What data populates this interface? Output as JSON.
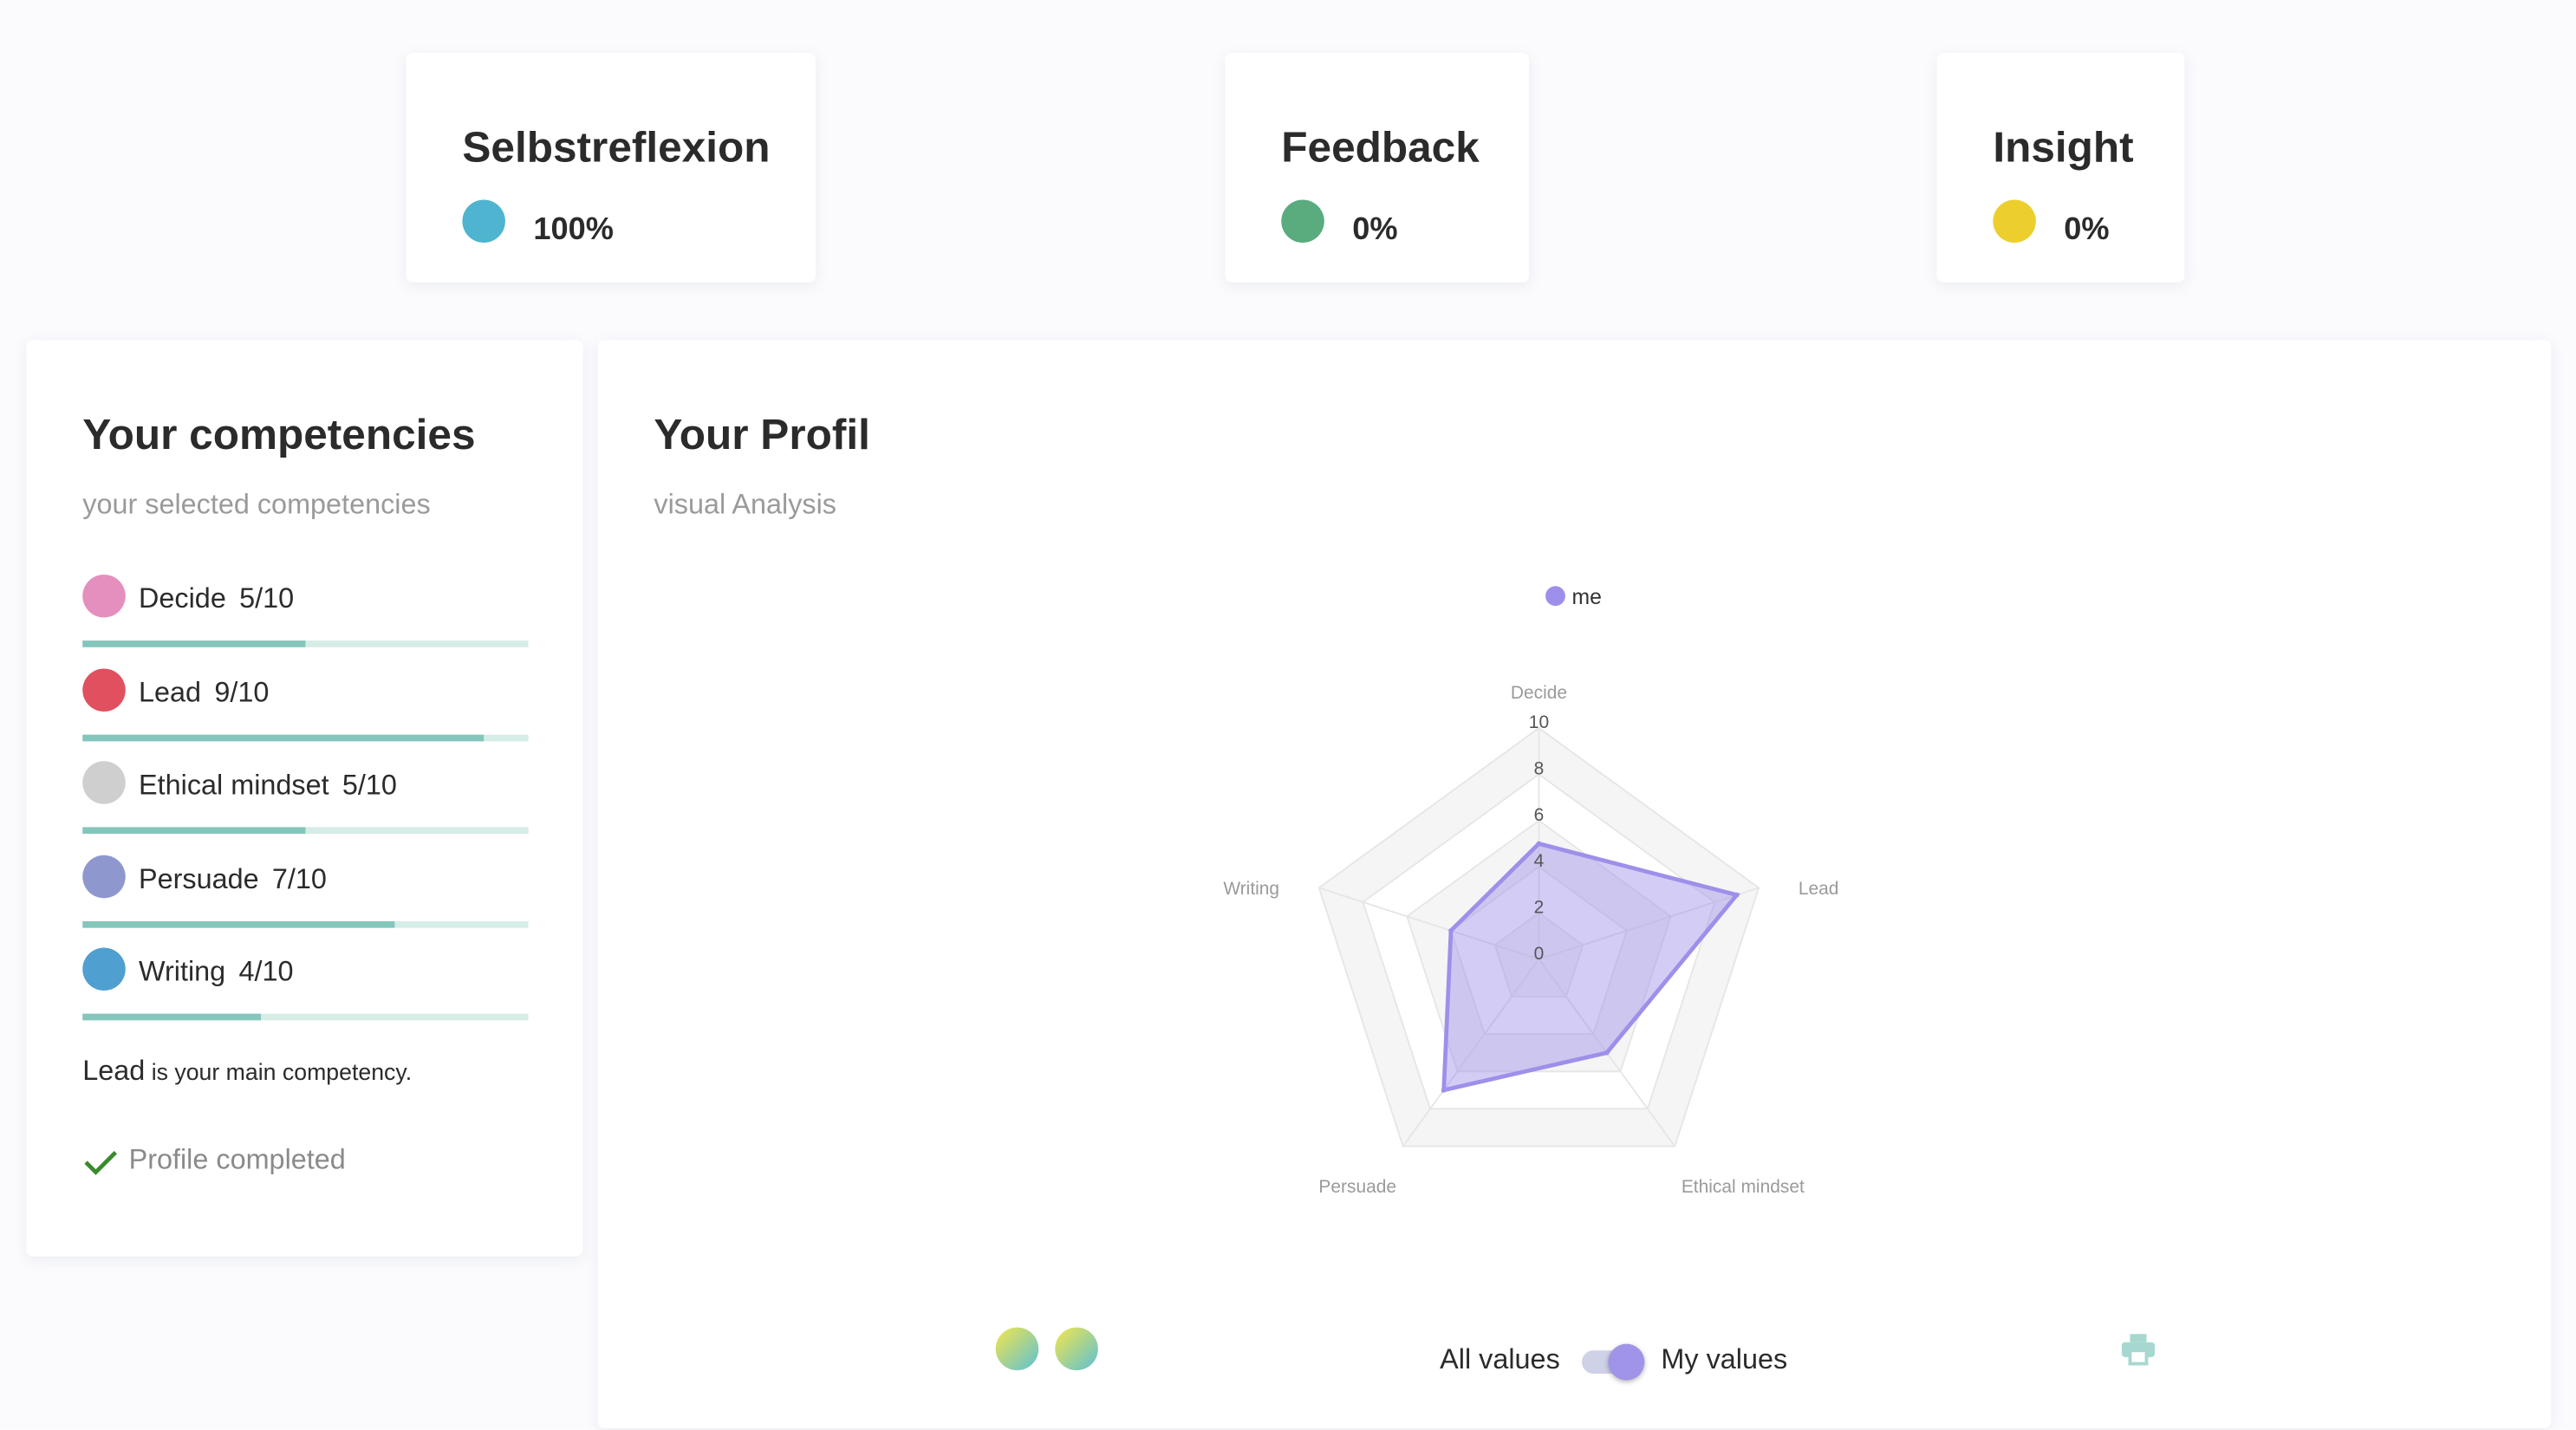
{
  "stats": [
    {
      "title": "Selbstreflexion",
      "value": "100%",
      "icon": "head-icon",
      "color": "#4fb4cf"
    },
    {
      "title": "Feedback",
      "value": "0%",
      "icon": "stars-person-icon",
      "color": "#5aab7e"
    },
    {
      "title": "Insight",
      "value": "0%",
      "icon": "eye-icon",
      "color": "#eccf2c"
    }
  ],
  "competencies": {
    "title": "Your competencies",
    "subtitle": "your selected competencies",
    "items": [
      {
        "name": "Decide",
        "score": "5/10",
        "value": 5,
        "color": "#e58fbf"
      },
      {
        "name": "Lead",
        "score": "9/10",
        "value": 9,
        "color": "#e0505e"
      },
      {
        "name": "Ethical mindset",
        "score": "5/10",
        "value": 5,
        "color": "#cfcfcf"
      },
      {
        "name": "Persuade",
        "score": "7/10",
        "value": 7,
        "color": "#8e98cf"
      },
      {
        "name": "Writing",
        "score": "4/10",
        "value": 4,
        "color": "#4f9fd0"
      }
    ],
    "main_name": "Lead",
    "main_text": "is your main competency.",
    "status": "Profile completed"
  },
  "profile": {
    "title": "Your Profil",
    "subtitle": "visual Analysis",
    "toggle_left": "All values",
    "toggle_right": "My values",
    "toggle_on": true
  },
  "chart_data": {
    "type": "radar",
    "axes": [
      "Decide",
      "Lead",
      "Ethical mindset",
      "Persuade",
      "Writing"
    ],
    "series": [
      {
        "name": "me",
        "values": [
          5,
          9,
          5,
          7,
          4
        ],
        "color": "#9d90ea"
      }
    ],
    "ticks": [
      "0",
      "2",
      "4",
      "6",
      "8",
      "10"
    ],
    "range": [
      0,
      10
    ],
    "legend": "top"
  }
}
